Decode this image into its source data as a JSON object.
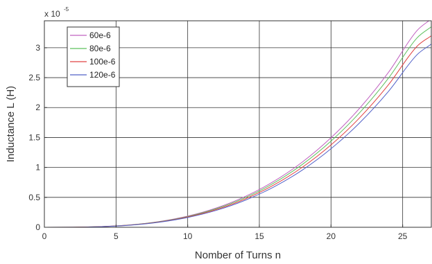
{
  "chart_data": {
    "type": "line",
    "title": "",
    "xlabel": "Nomber of Turns n",
    "ylabel": "Inductance L  (H)",
    "y_multiplier": {
      "base": "x 10",
      "exponent": "-5"
    },
    "xlim": [
      0,
      27
    ],
    "ylim": [
      0,
      3.45
    ],
    "x_ticks": [
      0,
      5,
      10,
      15,
      20,
      25
    ],
    "y_ticks": [
      0,
      0.5,
      1,
      1.5,
      2,
      2.5,
      3
    ],
    "y_tick_labels": [
      "0",
      "0.5",
      "1",
      "1.5",
      "2",
      "2.5",
      "3"
    ],
    "grid": true,
    "legend_position": "top-left",
    "x": [
      0,
      2,
      4,
      6,
      8,
      10,
      12,
      14,
      16,
      18,
      20,
      22,
      24,
      26,
      27
    ],
    "series": [
      {
        "name": "60e-6",
        "color": "#c060c0",
        "values": [
          0,
          0.0015,
          0.012,
          0.04,
          0.096,
          0.187,
          0.323,
          0.513,
          0.766,
          1.09,
          1.496,
          1.99,
          2.585,
          3.286,
          3.48
        ]
      },
      {
        "name": "80e-6",
        "color": "#5cc05c",
        "values": [
          0,
          0.0014,
          0.0115,
          0.039,
          0.092,
          0.18,
          0.311,
          0.494,
          0.737,
          1.05,
          1.44,
          1.915,
          2.488,
          3.163,
          3.35
        ]
      },
      {
        "name": "100e-6",
        "color": "#e04040",
        "values": [
          0,
          0.0014,
          0.011,
          0.037,
          0.088,
          0.172,
          0.297,
          0.472,
          0.705,
          1.003,
          1.376,
          1.83,
          2.378,
          3.023,
          3.2
        ]
      },
      {
        "name": "120e-6",
        "color": "#5060c8",
        "values": [
          0,
          0.0013,
          0.0105,
          0.035,
          0.084,
          0.164,
          0.283,
          0.45,
          0.672,
          0.956,
          1.312,
          1.745,
          2.267,
          2.882,
          3.06
        ]
      }
    ]
  }
}
